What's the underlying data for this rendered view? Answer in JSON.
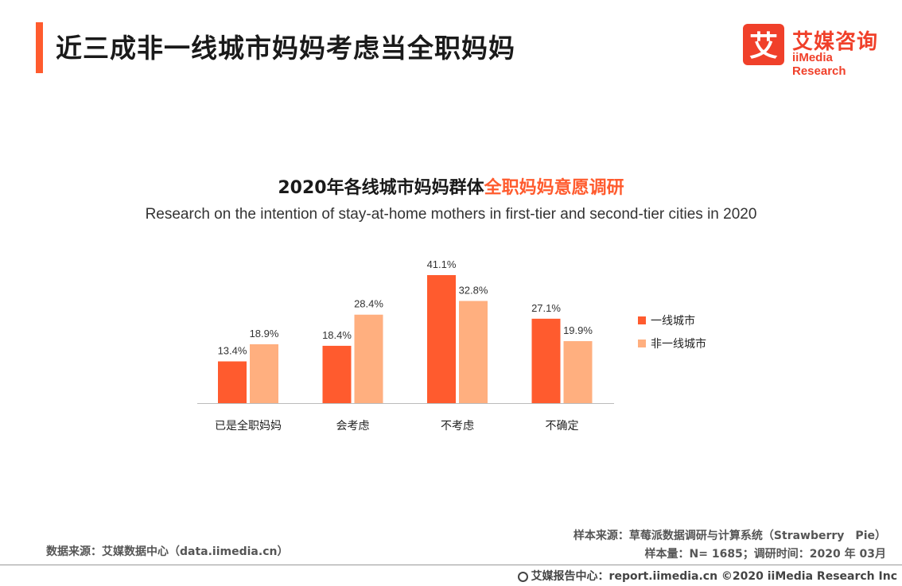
{
  "header": {
    "title": "近三成非一线城市妈妈考虑当全职妈妈",
    "accent_color": "#ff5b2e"
  },
  "logo": {
    "cn": "艾媒咨询",
    "en": "iiMedia Research",
    "mark_glyph": "艾",
    "color": "#f0402a"
  },
  "chart_data": {
    "type": "bar",
    "title_main": "2020年各线城市妈妈群体",
    "title_highlight": "全职妈妈意愿调研",
    "subtitle": "Research on the intention of stay-at-home mothers in first-tier and second-tier cities in 2020",
    "categories": [
      "已是全职妈妈",
      "会考虑",
      "不考虑",
      "不确定"
    ],
    "series": [
      {
        "name": "一线城市",
        "values": [
          13.4,
          18.4,
          41.1,
          27.1
        ],
        "labels": [
          "13.4%",
          "18.4%",
          "41.1%",
          "27.1%"
        ],
        "color": "#ff5b2e"
      },
      {
        "name": "非一线城市",
        "values": [
          18.9,
          28.4,
          32.8,
          19.9
        ],
        "labels": [
          "18.9%",
          "28.4%",
          "32.8%",
          "19.9%"
        ],
        "color": "#ffaf7f"
      }
    ],
    "ylim": [
      0,
      41.1
    ],
    "grid": false,
    "legend": "right"
  },
  "footer": {
    "source_left": "数据来源：艾媒数据中心（data.iimedia.cn）",
    "sample_source": "样本来源：草莓派数据调研与计算系统（Strawberry　Pie）",
    "sample_info": "样本量：N= 1685；调研时间：2020 年 03月",
    "bottom": "艾媒报告中心：report.iimedia.cn  ©2020  iiMedia Research  Inc"
  }
}
